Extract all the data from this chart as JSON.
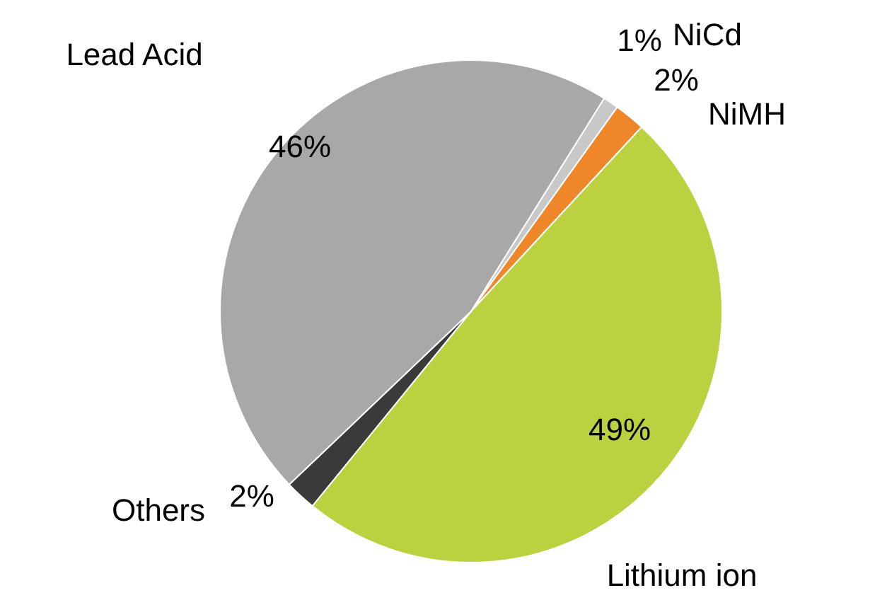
{
  "chart_data": {
    "type": "pie",
    "categories": [
      "NiCd",
      "NiMH",
      "Lithium ion",
      "Others",
      "Lead Acid"
    ],
    "values": [
      1,
      2,
      49,
      2,
      46
    ],
    "colors": [
      "#c8c8c8",
      "#f0862a",
      "#bcd13f",
      "#3a3a3a",
      "#a8a8a8"
    ],
    "value_labels": [
      "1%",
      "2%",
      "49%",
      "2%",
      "46%"
    ],
    "legend": false
  }
}
